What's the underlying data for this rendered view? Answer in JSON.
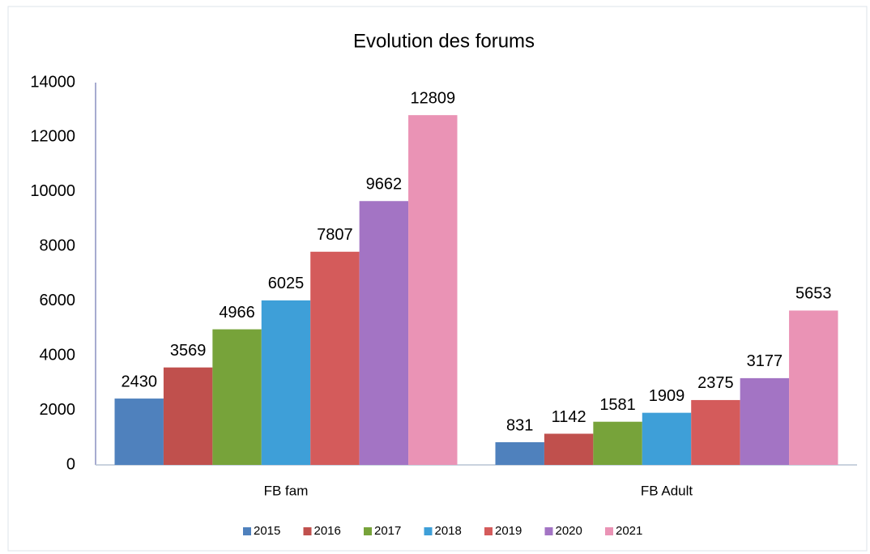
{
  "chart_data": {
    "type": "bar",
    "title": "Evolution des forums",
    "categories": [
      "FB fam",
      "FB Adult"
    ],
    "series": [
      {
        "name": "2015",
        "color": "#4f81bd",
        "values": [
          2430,
          831
        ]
      },
      {
        "name": "2016",
        "color": "#c0504d",
        "values": [
          3569,
          1142
        ]
      },
      {
        "name": "2017",
        "color": "#77a33a",
        "values": [
          4966,
          1581
        ]
      },
      {
        "name": "2018",
        "color": "#3e9fd8",
        "values": [
          6025,
          1909
        ]
      },
      {
        "name": "2019",
        "color": "#d45b5b",
        "values": [
          7807,
          2375
        ]
      },
      {
        "name": "2020",
        "color": "#a374c4",
        "values": [
          9662,
          3177
        ]
      },
      {
        "name": "2021",
        "color": "#ea93b5",
        "values": [
          12809,
          5653
        ]
      }
    ],
    "ylim": [
      0,
      14000
    ],
    "yticks": [
      0,
      2000,
      4000,
      6000,
      8000,
      10000,
      12000,
      14000
    ],
    "grid": false,
    "legend": "bottom"
  }
}
